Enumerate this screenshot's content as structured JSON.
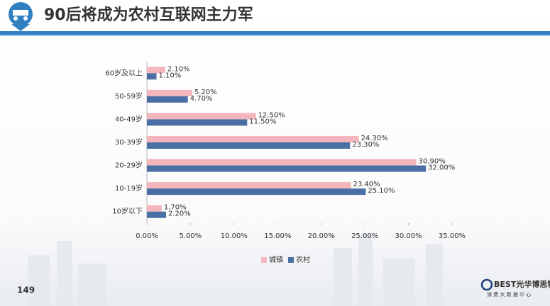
{
  "chart_data": {
    "type": "hbar",
    "title": "90后将成为农村互联网主力军",
    "categories": [
      "60岁及以上",
      "50-59岁",
      "40-49岁",
      "30-39岁",
      "20-29岁",
      "10-19岁",
      "10岁以下"
    ],
    "series": [
      {
        "name": "城镇",
        "color": "#f4b6bd",
        "values": [
          2.1,
          5.2,
          12.5,
          24.3,
          30.9,
          23.4,
          1.7
        ],
        "value_labels": [
          "2.10%",
          "5.20%",
          "12.50%",
          "24.30%",
          "30.90%",
          "23.40%",
          "1.70%"
        ]
      },
      {
        "name": "农村",
        "color": "#4a6fa5",
        "values": [
          1.1,
          4.7,
          11.5,
          23.3,
          32.0,
          25.1,
          2.2
        ],
        "value_labels": [
          "1.10%",
          "4.70%",
          "11.50%",
          "23.30%",
          "32.00%",
          "25.10%",
          "2.20%"
        ]
      }
    ],
    "xlim": [
      0,
      35
    ],
    "xticks": [
      {
        "value": 0,
        "label": "0.00%"
      },
      {
        "value": 5,
        "label": "5.00%"
      },
      {
        "value": 10,
        "label": "10.00%"
      },
      {
        "value": 15,
        "label": "15.00%"
      },
      {
        "value": 20,
        "label": "20.00%"
      },
      {
        "value": 25,
        "label": "25.00%"
      },
      {
        "value": 30,
        "label": "30.00%"
      },
      {
        "value": 35,
        "label": "35.00%"
      }
    ],
    "legend": "bottom"
  },
  "page_number": "149",
  "logo": {
    "name": "BEST光华博思特",
    "subtitle": "消 费 大 数 据 中 心"
  }
}
